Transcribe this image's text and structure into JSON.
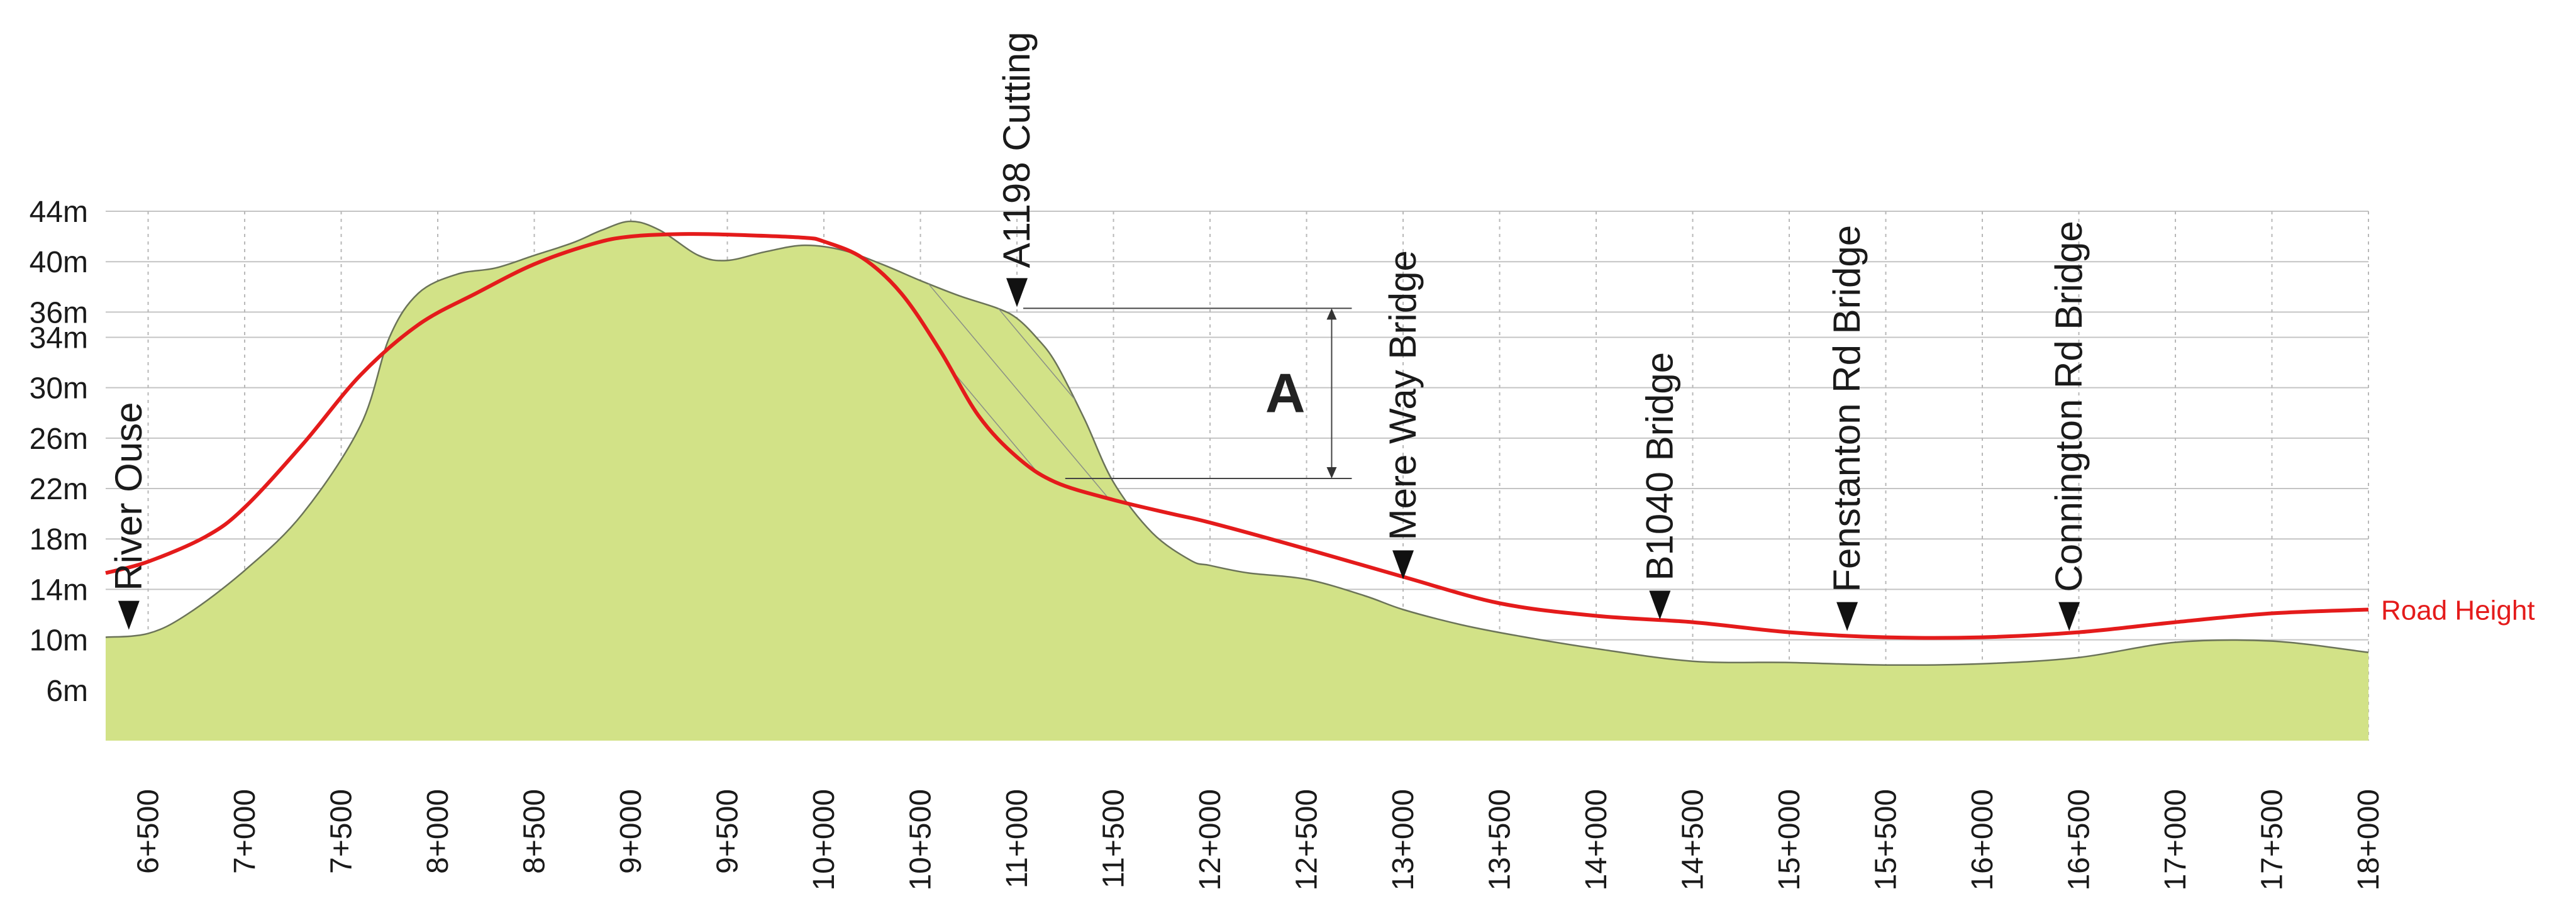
{
  "chart_data": {
    "type": "area",
    "xlabel": "",
    "ylabel": "",
    "xlim": [
      6.28,
      18.0
    ],
    "ylim": [
      2,
      44
    ],
    "y_ticks": [
      {
        "value": 44,
        "label": "44m"
      },
      {
        "value": 40,
        "label": "40m"
      },
      {
        "value": 36,
        "label": "36m"
      },
      {
        "value": 34,
        "label": "34m"
      },
      {
        "value": 30,
        "label": "30m"
      },
      {
        "value": 26,
        "label": "26m"
      },
      {
        "value": 22,
        "label": "22m"
      },
      {
        "value": 18,
        "label": "18m"
      },
      {
        "value": 14,
        "label": "14m"
      },
      {
        "value": 10,
        "label": "10m"
      },
      {
        "value": 6,
        "label": "6m"
      }
    ],
    "x_ticks": [
      {
        "value": 6.5,
        "label": "6+500"
      },
      {
        "value": 7.0,
        "label": "7+000"
      },
      {
        "value": 7.5,
        "label": "7+500"
      },
      {
        "value": 8.0,
        "label": "8+000"
      },
      {
        "value": 8.5,
        "label": "8+500"
      },
      {
        "value": 9.0,
        "label": "9+000"
      },
      {
        "value": 9.5,
        "label": "9+500"
      },
      {
        "value": 10.0,
        "label": "10+000"
      },
      {
        "value": 10.5,
        "label": "10+500"
      },
      {
        "value": 11.0,
        "label": "11+000"
      },
      {
        "value": 11.5,
        "label": "11+500"
      },
      {
        "value": 12.0,
        "label": "12+000"
      },
      {
        "value": 12.5,
        "label": "12+500"
      },
      {
        "value": 13.0,
        "label": "13+000"
      },
      {
        "value": 13.5,
        "label": "13+500"
      },
      {
        "value": 14.0,
        "label": "14+000"
      },
      {
        "value": 14.5,
        "label": "14+500"
      },
      {
        "value": 15.0,
        "label": "15+000"
      },
      {
        "value": 15.5,
        "label": "15+500"
      },
      {
        "value": 16.0,
        "label": "16+000"
      },
      {
        "value": 16.5,
        "label": "16+500"
      },
      {
        "value": 17.0,
        "label": "17+000"
      },
      {
        "value": 17.5,
        "label": "17+500"
      },
      {
        "value": 18.0,
        "label": "18+000"
      }
    ],
    "grid": true,
    "terrain": {
      "color": "#d2e287",
      "x": [
        6.28,
        6.5,
        6.7,
        7.0,
        7.3,
        7.6,
        7.75,
        7.9,
        8.1,
        8.3,
        8.5,
        8.7,
        8.85,
        9.0,
        9.15,
        9.35,
        9.5,
        9.7,
        9.9,
        10.1,
        10.3,
        10.5,
        10.7,
        10.9,
        11.0,
        11.1,
        11.2,
        11.35,
        11.5,
        11.7,
        11.9,
        12.0,
        12.2,
        12.5,
        12.8,
        13.0,
        13.3,
        13.6,
        14.0,
        14.5,
        15.0,
        15.5,
        16.0,
        16.5,
        17.0,
        17.5,
        18.0
      ],
      "y": [
        10.2,
        10.5,
        12,
        15.5,
        20,
        27,
        34,
        37.5,
        39,
        39.5,
        40.5,
        41.5,
        42.5,
        43.2,
        42.5,
        40.5,
        40.1,
        40.8,
        41.3,
        40.9,
        39.8,
        38.5,
        37.3,
        36.3,
        35.5,
        34,
        32,
        27.5,
        22.5,
        18.5,
        16.3,
        15.9,
        15.3,
        14.8,
        13.5,
        12.4,
        11.2,
        10.3,
        9.3,
        8.3,
        8.2,
        8.0,
        8.1,
        8.6,
        9.8,
        9.9,
        9.0
      ]
    },
    "series": [
      {
        "name": "Road Height",
        "color": "#e41b1b",
        "x": [
          6.28,
          6.5,
          6.8,
          7.0,
          7.3,
          7.6,
          7.9,
          8.2,
          8.5,
          8.8,
          9.0,
          9.3,
          9.6,
          9.9,
          10.0,
          10.2,
          10.4,
          10.6,
          10.8,
          11.0,
          11.2,
          11.5,
          11.8,
          12.0,
          12.5,
          13.0,
          13.5,
          14.0,
          14.5,
          15.0,
          15.5,
          16.0,
          16.5,
          17.0,
          17.5,
          18.0
        ],
        "y": [
          15.3,
          16.2,
          18.2,
          20.5,
          25.5,
          31,
          35,
          37.5,
          39.8,
          41.4,
          42.0,
          42.2,
          42.1,
          41.9,
          41.6,
          40.3,
          37.5,
          33,
          27.8,
          24.5,
          22.5,
          21.1,
          20.0,
          19.3,
          17.2,
          15.0,
          12.9,
          11.9,
          11.4,
          10.6,
          10.2,
          10.2,
          10.6,
          11.4,
          12.1,
          12.4
        ]
      }
    ],
    "landmarks": [
      {
        "x": 6.4,
        "name": "River Ouse",
        "marker_y": 10.8
      },
      {
        "x": 11.0,
        "name": "A1198 Cutting",
        "marker_y": 36.4
      },
      {
        "x": 13.0,
        "name": "Mere Way Bridge",
        "marker_y": 14.8
      },
      {
        "x": 14.33,
        "name": "B1040 Bridge",
        "marker_y": 11.6
      },
      {
        "x": 15.3,
        "name": "Fenstanton Rd Bridge",
        "marker_y": 10.7
      },
      {
        "x": 16.45,
        "name": "Connington Rd Bridge",
        "marker_y": 10.7
      }
    ],
    "cutting_dimension": {
      "label": "A",
      "top_y": 36.3,
      "bottom_y": 22.8,
      "x": 12.63
    }
  }
}
